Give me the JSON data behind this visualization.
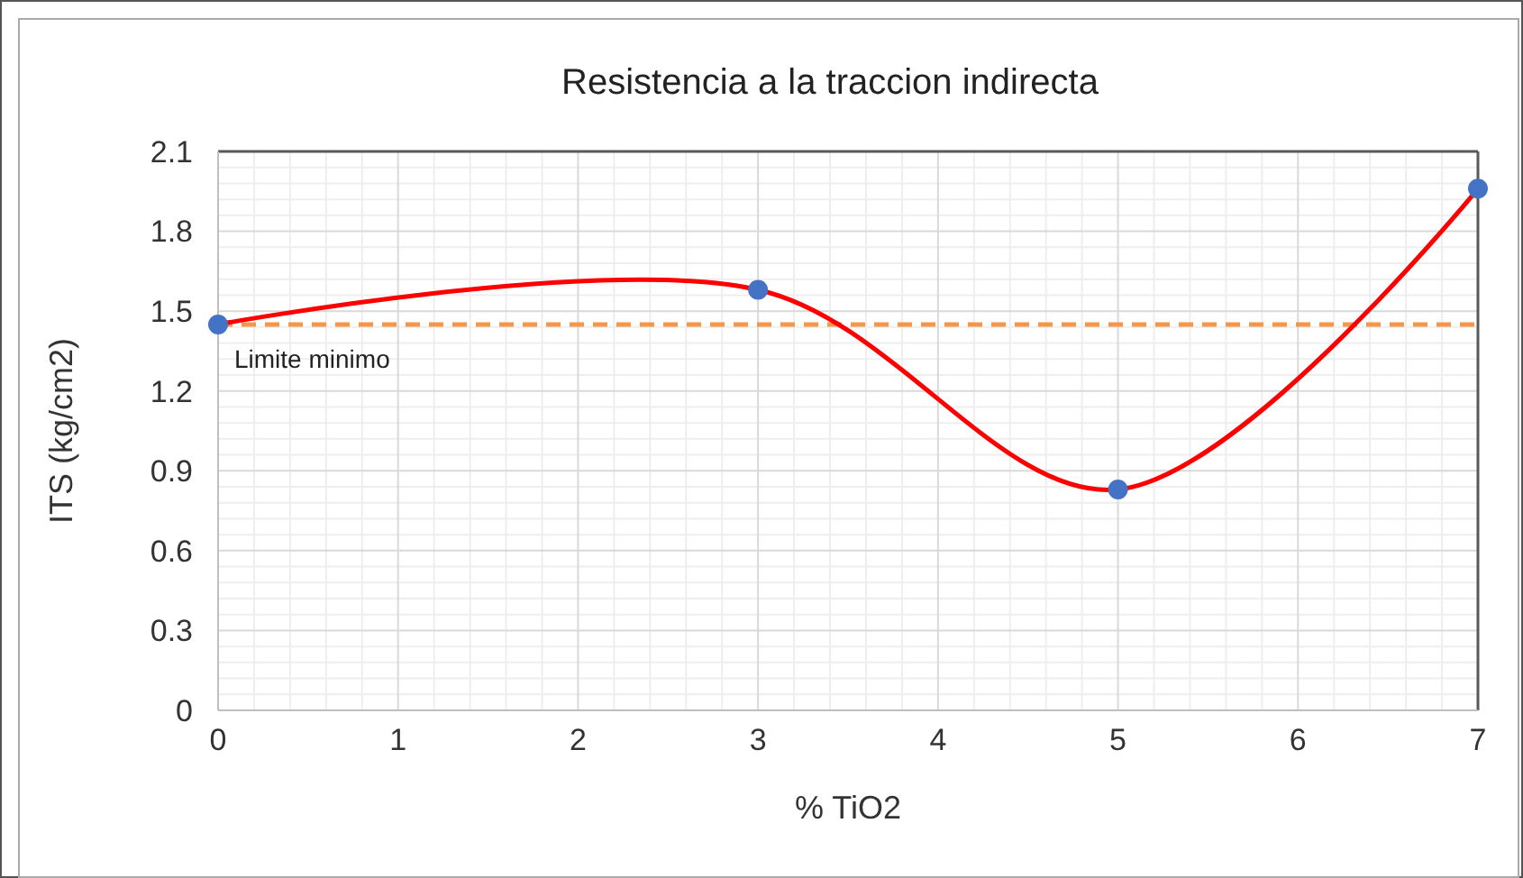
{
  "chart_data": {
    "type": "line",
    "title": "Resistencia a la traccion indirecta",
    "xlabel": "% TiO2",
    "ylabel": "ITS (kg/cm2)",
    "x": [
      0,
      3,
      5,
      7
    ],
    "series": [
      {
        "color": "#ff0000",
        "marker": "none",
        "values": [
          1.45,
          1.58,
          0.83,
          1.96
        ]
      },
      {
        "type": "scatter",
        "color": "#4472c4",
        "values": [
          1.45,
          1.58,
          0.83,
          1.96
        ]
      }
    ],
    "xlim": [
      0,
      7
    ],
    "xticks": [
      0,
      1,
      2,
      3,
      4,
      5,
      6,
      7
    ],
    "ylim": [
      0,
      2.1
    ],
    "yticks": [
      0,
      0.3,
      0.6,
      0.9,
      1.2,
      1.5,
      1.8,
      2.1
    ],
    "ref_lines": [
      {
        "axis": "y",
        "value": 1.45,
        "label": "Limite minimo",
        "color": "#f4974b",
        "line_style": "dashed"
      }
    ],
    "grid": true,
    "marker": "circle",
    "line_style": "solid"
  }
}
